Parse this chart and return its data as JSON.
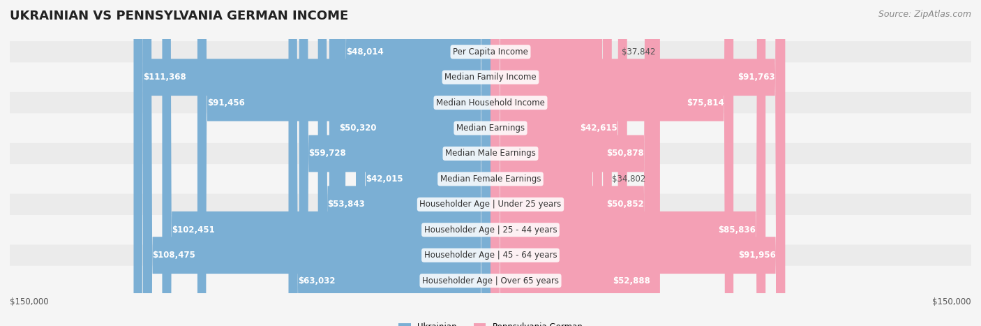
{
  "title": "UKRAINIAN VS PENNSYLVANIA GERMAN INCOME",
  "source": "Source: ZipAtlas.com",
  "categories": [
    "Per Capita Income",
    "Median Family Income",
    "Median Household Income",
    "Median Earnings",
    "Median Male Earnings",
    "Median Female Earnings",
    "Householder Age | Under 25 years",
    "Householder Age | 25 - 44 years",
    "Householder Age | 45 - 64 years",
    "Householder Age | Over 65 years"
  ],
  "ukrainian_values": [
    48014,
    111368,
    91456,
    50320,
    59728,
    42015,
    53843,
    102451,
    108475,
    63032
  ],
  "pennger_values": [
    37842,
    91763,
    75814,
    42615,
    50878,
    34802,
    50852,
    85836,
    91956,
    52888
  ],
  "ukrainian_labels": [
    "$48,014",
    "$111,368",
    "$91,456",
    "$50,320",
    "$59,728",
    "$42,015",
    "$53,843",
    "$102,451",
    "$108,475",
    "$63,032"
  ],
  "pennger_labels": [
    "$37,842",
    "$91,763",
    "$75,814",
    "$42,615",
    "$50,878",
    "$34,802",
    "$50,852",
    "$85,836",
    "$91,956",
    "$52,888"
  ],
  "max_value": 150000,
  "ukrainian_color": "#7bafd4",
  "ukrainian_color_dark": "#5b8fbf",
  "pennger_color": "#f4a0b5",
  "pennger_color_dark": "#e8728f",
  "bg_color": "#f5f5f5",
  "row_bg_color": "#ebebeb",
  "row_alt_bg_color": "#f5f5f5",
  "title_fontsize": 13,
  "source_fontsize": 9,
  "label_fontsize": 8.5,
  "cat_fontsize": 8.5
}
